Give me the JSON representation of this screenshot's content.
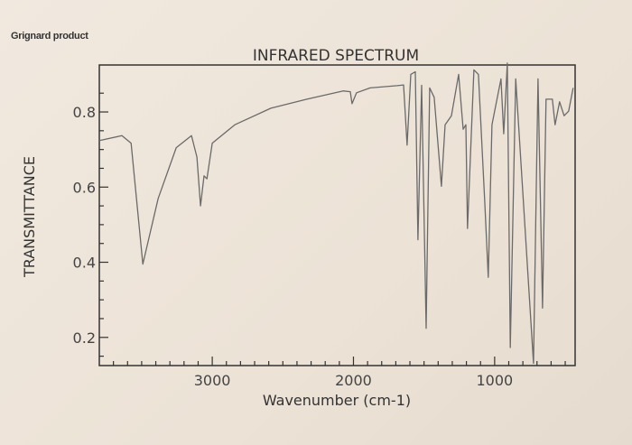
{
  "caption": "Grignard product",
  "chart_data": {
    "type": "line",
    "title": "INFRARED SPECTRUM",
    "xlabel": "Wavenumber (cm-1)",
    "ylabel": "TRANSMITTANCE",
    "xlim": [
      3800,
      430
    ],
    "ylim": [
      0.125,
      0.925
    ],
    "x_reversed": true,
    "xticks": [
      3000,
      2000,
      1000
    ],
    "yticks": [
      0.2,
      0.4,
      0.6,
      0.8
    ],
    "xtick_labels": [
      "3000",
      "2000",
      "1000"
    ],
    "ytick_labels": [
      "0.2",
      "0.4",
      "0.6",
      "0.8"
    ],
    "grid": false,
    "line_color": "#6a6a6a",
    "series": [
      {
        "x": [
          3800,
          3640,
          3575,
          3492,
          3383,
          3255,
          3147,
          3109,
          3083,
          3058,
          3038,
          3000,
          2840,
          2585,
          2330,
          2073,
          2022,
          2010,
          1978,
          1882,
          1690,
          1645,
          1620,
          1594,
          1562,
          1543,
          1517,
          1485,
          1460,
          1428,
          1377,
          1351,
          1306,
          1255,
          1223,
          1204,
          1192,
          1147,
          1115,
          1070,
          1045,
          1019,
          955,
          936,
          910,
          889,
          851,
          725,
          693,
          661,
          636,
          591,
          572,
          540,
          508,
          476,
          444
        ],
        "y": [
          0.724,
          0.737,
          0.717,
          0.395,
          0.57,
          0.705,
          0.737,
          0.68,
          0.55,
          0.63,
          0.622,
          0.717,
          0.766,
          0.81,
          0.834,
          0.856,
          0.854,
          0.822,
          0.851,
          0.864,
          0.87,
          0.872,
          0.712,
          0.9,
          0.907,
          0.46,
          0.871,
          0.224,
          0.864,
          0.839,
          0.602,
          0.766,
          0.79,
          0.9,
          0.754,
          0.766,
          0.49,
          0.912,
          0.9,
          0.561,
          0.36,
          0.766,
          0.888,
          0.742,
          0.93,
          0.173,
          0.888,
          0.131,
          0.888,
          0.278,
          0.834,
          0.834,
          0.766,
          0.827,
          0.79,
          0.802,
          0.864
        ]
      }
    ]
  }
}
